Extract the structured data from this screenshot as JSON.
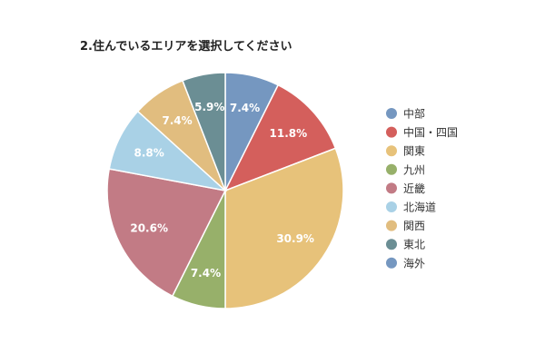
{
  "chart_data": {
    "type": "pie",
    "title": "2.住んでいるエリアを選択してください",
    "slices": [
      {
        "label": "中部",
        "value": 7.4,
        "display": "7.4%",
        "color": "#7597C0"
      },
      {
        "label": "中国・四国",
        "value": 11.8,
        "display": "11.8%",
        "color": "#D45F5C"
      },
      {
        "label": "関東",
        "value": 30.9,
        "display": "30.9%",
        "color": "#E7C27A"
      },
      {
        "label": "九州",
        "value": 7.4,
        "display": "7.4%",
        "color": "#97B06A"
      },
      {
        "label": "近畿",
        "value": 20.6,
        "display": "20.6%",
        "color": "#C27B85"
      },
      {
        "label": "北海道",
        "value": 8.8,
        "display": "8.8%",
        "color": "#A9D1E6"
      },
      {
        "label": "関西",
        "value": 7.4,
        "display": "7.4%",
        "color": "#E1BD7F"
      },
      {
        "label": "東北",
        "value": 5.9,
        "display": "5.9%",
        "color": "#6B8E94"
      }
    ],
    "legend": [
      {
        "label": "中部",
        "color": "#7597C0"
      },
      {
        "label": "中国・四国",
        "color": "#D45F5C"
      },
      {
        "label": "関東",
        "color": "#E7C27A"
      },
      {
        "label": "九州",
        "color": "#97B06A"
      },
      {
        "label": "近畿",
        "color": "#C27B85"
      },
      {
        "label": "北海道",
        "color": "#A9D1E6"
      },
      {
        "label": "関西",
        "color": "#E1BD7F"
      },
      {
        "label": "東北",
        "color": "#6B8E94"
      },
      {
        "label": "海外",
        "color": "#7597C0"
      }
    ],
    "legend_position": "right"
  }
}
